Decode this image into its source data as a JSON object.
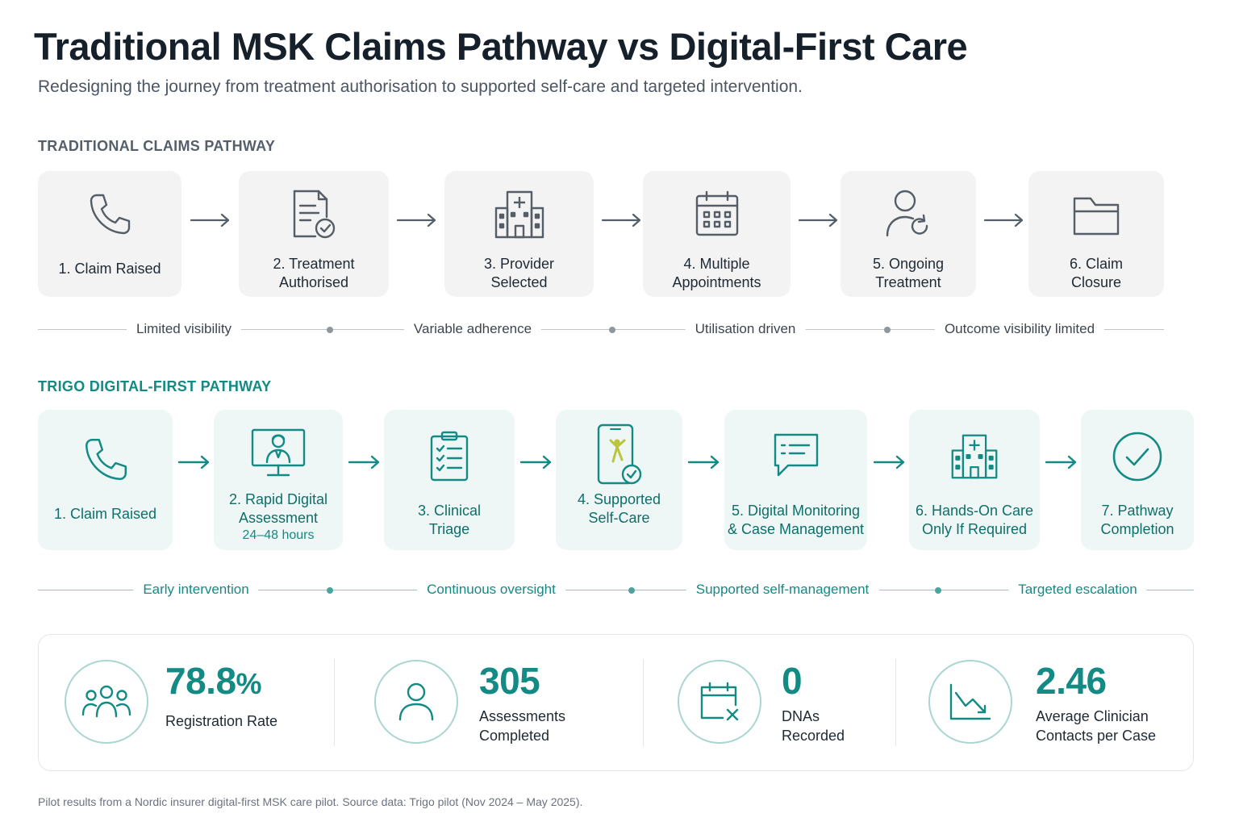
{
  "header": {
    "title": "Traditional MSK Claims Pathway vs Digital-First Care",
    "subtitle": "Redesigning the journey from treatment authorisation to supported self-care and targeted intervention."
  },
  "traditional": {
    "section_label": "TRADITIONAL CLAIMS PATHWAY",
    "steps": [
      {
        "label": "1. Claim Raised",
        "icon": "phone-icon"
      },
      {
        "label": "2. Treatment\nAuthorised",
        "icon": "document-check-icon"
      },
      {
        "label": "3. Provider\nSelected",
        "icon": "hospital-icon"
      },
      {
        "label": "4. Multiple\nAppointments",
        "icon": "calendar-icon"
      },
      {
        "label": "5. Ongoing\nTreatment",
        "icon": "user-refresh-icon"
      },
      {
        "label": "6. Claim\nClosure",
        "icon": "folder-icon"
      }
    ],
    "phases": [
      "Limited visibility",
      "Variable adherence",
      "Utilisation driven",
      "Outcome visibility limited"
    ]
  },
  "digital": {
    "section_label": "TRIGO DIGITAL-FIRST PATHWAY",
    "steps": [
      {
        "label": "1. Claim Raised",
        "sublabel": "",
        "icon": "phone-icon"
      },
      {
        "label": "2. Rapid Digital\nAssessment",
        "sublabel": "24–48 hours",
        "icon": "video-consult-icon"
      },
      {
        "label": "3. Clinical\nTriage",
        "sublabel": "",
        "icon": "clipboard-checklist-icon"
      },
      {
        "label": "4. Supported\nSelf-Care",
        "sublabel": "",
        "icon": "mobile-exercise-icon"
      },
      {
        "label": "5. Digital Monitoring\n& Case Management",
        "sublabel": "",
        "icon": "chat-message-icon"
      },
      {
        "label": "6. Hands-On Care\nOnly If Required",
        "sublabel": "",
        "icon": "hospital-icon"
      },
      {
        "label": "7. Pathway\nCompletion",
        "sublabel": "",
        "icon": "check-circle-icon"
      }
    ],
    "phases": [
      "Early intervention",
      "Continuous oversight",
      "Supported self-management",
      "Targeted escalation"
    ]
  },
  "metrics": [
    {
      "value": "78.8",
      "unit": "%",
      "label": "Registration Rate",
      "icon": "users-group-icon"
    },
    {
      "value": "305",
      "unit": "",
      "label": "Assessments\nCompleted",
      "icon": "user-icon"
    },
    {
      "value": "0",
      "unit": "",
      "label": "DNAs\nRecorded",
      "icon": "calendar-x-icon"
    },
    {
      "value": "2.46",
      "unit": "",
      "label": "Average Clinician\nContacts per Case",
      "icon": "trend-down-icon"
    }
  ],
  "footnote": "Pilot results from a Nordic insurer digital-first MSK care pilot. Source data: Trigo pilot (Nov 2024 – May 2025).",
  "colors": {
    "accent": "#138a84",
    "trad_card": "#f3f3f3",
    "digital_card": "#eef7f6"
  }
}
